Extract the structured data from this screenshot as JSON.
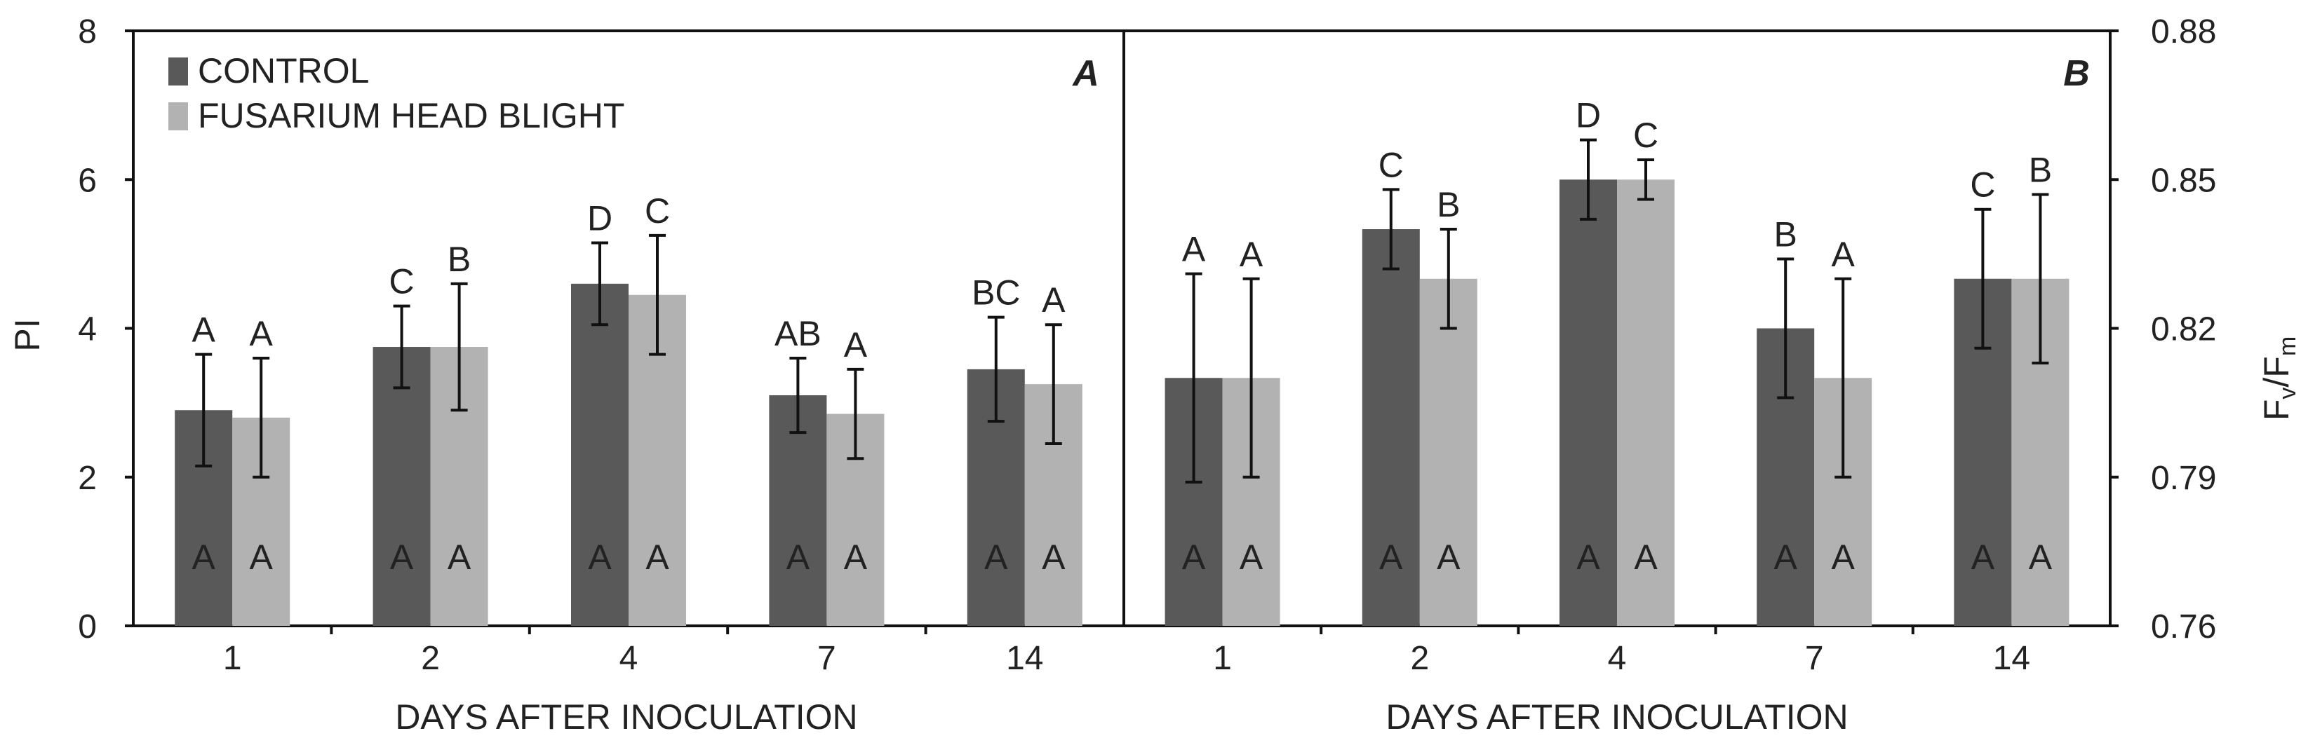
{
  "legend": {
    "control": "CONTROL",
    "fhb": "FUSARIUM HEAD BLIGHT"
  },
  "colors": {
    "control": "#595959",
    "fhb": "#b2b2b2",
    "axis": "#111111"
  },
  "chart_data": [
    {
      "type": "bar",
      "panel": "A",
      "categories": [
        "1",
        "2",
        "4",
        "7",
        "14"
      ],
      "xlabel": "DAYS AFTER INOCULATION",
      "ylabel": "PI",
      "ylim": [
        0,
        8
      ],
      "yticks": [
        0,
        2,
        4,
        6,
        8
      ],
      "tick_labels": [
        "0",
        "2",
        "4",
        "6",
        "8"
      ],
      "y_axis_side": "left",
      "series": [
        {
          "name": "CONTROL",
          "values": [
            2.9,
            3.75,
            4.6,
            3.1,
            3.45
          ],
          "errors": [
            0.75,
            0.55,
            0.55,
            0.5,
            0.7
          ],
          "letters_top": [
            "A",
            "C",
            "D",
            "AB",
            "BC"
          ],
          "letters_bottom": [
            "A",
            "A",
            "A",
            "A",
            "A"
          ]
        },
        {
          "name": "FUSARIUM HEAD BLIGHT",
          "values": [
            2.8,
            3.75,
            4.45,
            2.85,
            3.25
          ],
          "errors": [
            0.8,
            0.85,
            0.8,
            0.6,
            0.8
          ],
          "letters_top": [
            "A",
            "B",
            "C",
            "A",
            "A"
          ],
          "letters_bottom": [
            "A",
            "A",
            "A",
            "A",
            "A"
          ]
        }
      ]
    },
    {
      "type": "bar",
      "panel": "B",
      "categories": [
        "1",
        "2",
        "4",
        "7",
        "14"
      ],
      "xlabel": "DAYS AFTER INOCULATION",
      "ylabel": "Fv/Fm",
      "ylabel_parts": {
        "f1": "F",
        "v": "v",
        "slash": "/",
        "f2": "F",
        "m": "m"
      },
      "ylim": [
        0.76,
        0.88
      ],
      "yticks": [
        0.76,
        0.79,
        0.82,
        0.85,
        0.88
      ],
      "tick_labels": [
        "0.76",
        "0.79",
        "0.82",
        "0.85",
        "0.88"
      ],
      "y_axis_side": "right",
      "series": [
        {
          "name": "CONTROL",
          "values": [
            0.81,
            0.84,
            0.85,
            0.82,
            0.83
          ],
          "errors": [
            0.021,
            0.008,
            0.008,
            0.014,
            0.014
          ],
          "letters_top": [
            "A",
            "C",
            "D",
            "B",
            "C"
          ],
          "letters_bottom": [
            "A",
            "A",
            "A",
            "A",
            "A"
          ]
        },
        {
          "name": "FUSARIUM HEAD BLIGHT",
          "values": [
            0.81,
            0.83,
            0.85,
            0.81,
            0.83
          ],
          "errors": [
            0.02,
            0.01,
            0.004,
            0.02,
            0.017
          ],
          "letters_top": [
            "A",
            "B",
            "C",
            "A",
            "B"
          ],
          "letters_bottom": [
            "A",
            "A",
            "A",
            "A",
            "A"
          ]
        }
      ]
    }
  ]
}
